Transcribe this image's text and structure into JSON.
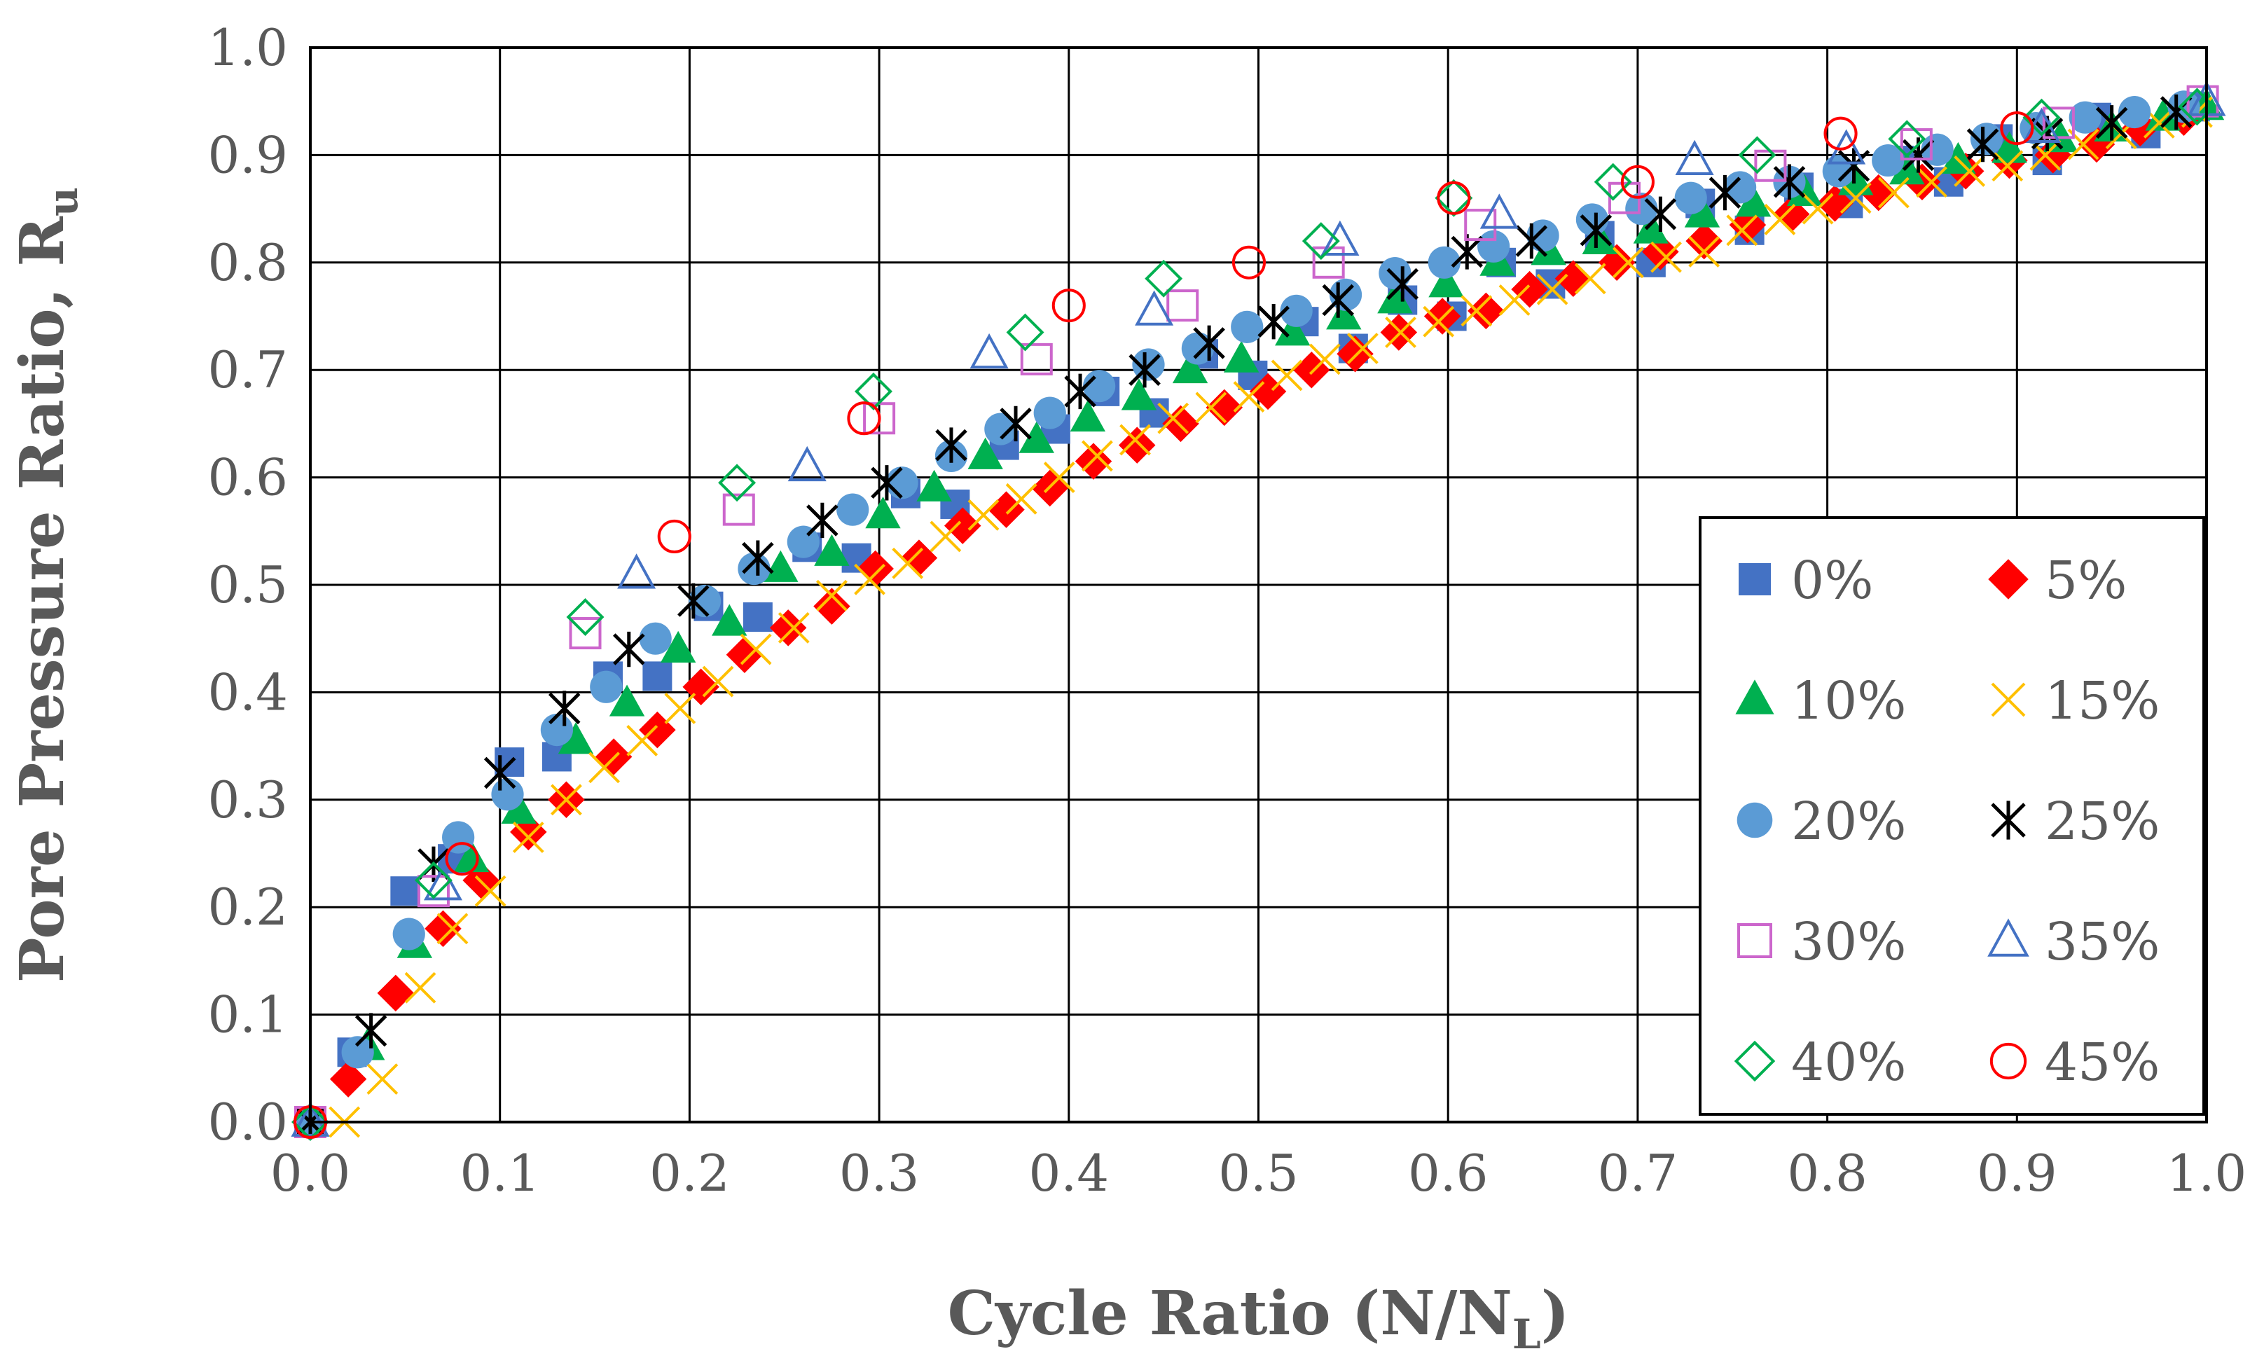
{
  "chart_data": {
    "type": "scatter",
    "title": "",
    "xlabel": {
      "main": "Cycle Ratio (N/N",
      "sub": "L",
      "suffix": ")"
    },
    "ylabel": {
      "main": "Pore Pressure Ratio, R",
      "sub": "u"
    },
    "xlim": [
      0,
      1
    ],
    "ylim": [
      0,
      1
    ],
    "x_ticks": [
      "0.0",
      "0.1",
      "0.2",
      "0.3",
      "0.4",
      "0.5",
      "0.6",
      "0.7",
      "0.8",
      "0.9",
      "1.0"
    ],
    "y_ticks": [
      "0.0",
      "0.1",
      "0.2",
      "0.3",
      "0.4",
      "0.5",
      "0.6",
      "0.7",
      "0.8",
      "0.9",
      "1.0"
    ],
    "grid": true,
    "legend_position": "lower-right",
    "series": [
      {
        "name": "0%",
        "marker": "square",
        "color": "#4472C4",
        "x": [
          0,
          0.022,
          0.05,
          0.075,
          0.105,
          0.13,
          0.157,
          0.183,
          0.21,
          0.236,
          0.262,
          0.288,
          0.314,
          0.34,
          0.366,
          0.393,
          0.419,
          0.445,
          0.471,
          0.497,
          0.524,
          0.55,
          0.576,
          0.602,
          0.628,
          0.654,
          0.68,
          0.707,
          0.733,
          0.759,
          0.785,
          0.811,
          0.838,
          0.864,
          0.89,
          0.916,
          0.942,
          0.968,
          0.994
        ],
        "y": [
          0,
          0.065,
          0.215,
          0.245,
          0.335,
          0.34,
          0.415,
          0.415,
          0.48,
          0.47,
          0.535,
          0.525,
          0.585,
          0.575,
          0.63,
          0.645,
          0.68,
          0.66,
          0.715,
          0.695,
          0.745,
          0.72,
          0.765,
          0.75,
          0.8,
          0.78,
          0.825,
          0.8,
          0.855,
          0.83,
          0.87,
          0.855,
          0.895,
          0.875,
          0.915,
          0.895,
          0.935,
          0.92,
          0.945
        ]
      },
      {
        "name": "5%",
        "marker": "diamond",
        "color": "#FF0000",
        "x": [
          0,
          0.02,
          0.045,
          0.07,
          0.09,
          0.115,
          0.135,
          0.16,
          0.183,
          0.206,
          0.229,
          0.252,
          0.275,
          0.298,
          0.321,
          0.344,
          0.367,
          0.39,
          0.413,
          0.436,
          0.459,
          0.482,
          0.505,
          0.528,
          0.551,
          0.574,
          0.597,
          0.62,
          0.643,
          0.666,
          0.689,
          0.712,
          0.735,
          0.758,
          0.781,
          0.804,
          0.827,
          0.85,
          0.873,
          0.896,
          0.919,
          0.942,
          0.965,
          0.988
        ],
        "y": [
          0,
          0.04,
          0.12,
          0.18,
          0.225,
          0.27,
          0.3,
          0.34,
          0.365,
          0.405,
          0.435,
          0.46,
          0.48,
          0.515,
          0.525,
          0.555,
          0.57,
          0.59,
          0.615,
          0.63,
          0.65,
          0.665,
          0.68,
          0.7,
          0.715,
          0.735,
          0.75,
          0.755,
          0.775,
          0.785,
          0.8,
          0.81,
          0.82,
          0.835,
          0.845,
          0.855,
          0.865,
          0.875,
          0.885,
          0.895,
          0.9,
          0.91,
          0.925,
          0.935
        ]
      },
      {
        "name": "10%",
        "marker": "triangle",
        "color": "#00B050",
        "x": [
          0,
          0.03,
          0.055,
          0.085,
          0.11,
          0.14,
          0.167,
          0.194,
          0.221,
          0.248,
          0.275,
          0.302,
          0.329,
          0.356,
          0.383,
          0.41,
          0.437,
          0.464,
          0.491,
          0.518,
          0.545,
          0.572,
          0.599,
          0.626,
          0.653,
          0.68,
          0.707,
          0.734,
          0.761,
          0.788,
          0.815,
          0.842,
          0.869,
          0.896,
          0.923,
          0.95,
          0.977,
          1.0
        ],
        "y": [
          0,
          0.07,
          0.165,
          0.245,
          0.29,
          0.355,
          0.39,
          0.44,
          0.465,
          0.515,
          0.53,
          0.565,
          0.59,
          0.62,
          0.635,
          0.655,
          0.675,
          0.7,
          0.71,
          0.735,
          0.75,
          0.765,
          0.78,
          0.8,
          0.81,
          0.82,
          0.83,
          0.845,
          0.855,
          0.865,
          0.875,
          0.885,
          0.895,
          0.905,
          0.915,
          0.925,
          0.935,
          0.945
        ]
      },
      {
        "name": "15%",
        "marker": "x",
        "color": "#FFC000",
        "x": [
          0.018,
          0.038,
          0.058,
          0.075,
          0.095,
          0.115,
          0.135,
          0.155,
          0.175,
          0.195,
          0.215,
          0.235,
          0.255,
          0.275,
          0.295,
          0.315,
          0.335,
          0.355,
          0.375,
          0.395,
          0.415,
          0.435,
          0.455,
          0.475,
          0.495,
          0.515,
          0.535,
          0.555,
          0.575,
          0.595,
          0.615,
          0.635,
          0.655,
          0.675,
          0.695,
          0.715,
          0.735,
          0.755,
          0.775,
          0.795,
          0.815,
          0.835,
          0.855,
          0.875,
          0.895,
          0.915,
          0.935,
          0.955,
          0.975,
          0.995
        ],
        "y": [
          0,
          0.04,
          0.125,
          0.18,
          0.215,
          0.265,
          0.3,
          0.33,
          0.355,
          0.385,
          0.41,
          0.44,
          0.46,
          0.49,
          0.505,
          0.52,
          0.545,
          0.565,
          0.58,
          0.6,
          0.62,
          0.635,
          0.655,
          0.665,
          0.675,
          0.695,
          0.71,
          0.72,
          0.735,
          0.745,
          0.755,
          0.765,
          0.775,
          0.785,
          0.8,
          0.805,
          0.81,
          0.83,
          0.84,
          0.85,
          0.86,
          0.865,
          0.875,
          0.885,
          0.89,
          0.9,
          0.91,
          0.92,
          0.93,
          0.94
        ]
      },
      {
        "name": "20%",
        "marker": "circle",
        "color": "#5B9BD5",
        "x": [
          0,
          0.025,
          0.052,
          0.078,
          0.104,
          0.13,
          0.156,
          0.182,
          0.208,
          0.234,
          0.26,
          0.286,
          0.312,
          0.338,
          0.364,
          0.39,
          0.416,
          0.442,
          0.468,
          0.494,
          0.52,
          0.546,
          0.572,
          0.598,
          0.624,
          0.65,
          0.676,
          0.702,
          0.728,
          0.754,
          0.78,
          0.806,
          0.832,
          0.858,
          0.884,
          0.91,
          0.936,
          0.962,
          0.988
        ],
        "y": [
          0,
          0.065,
          0.175,
          0.265,
          0.305,
          0.365,
          0.405,
          0.45,
          0.485,
          0.515,
          0.54,
          0.57,
          0.595,
          0.62,
          0.645,
          0.66,
          0.685,
          0.705,
          0.72,
          0.74,
          0.755,
          0.77,
          0.79,
          0.8,
          0.815,
          0.825,
          0.84,
          0.85,
          0.86,
          0.87,
          0.875,
          0.885,
          0.895,
          0.905,
          0.915,
          0.925,
          0.935,
          0.94,
          0.945
        ]
      },
      {
        "name": "25%",
        "marker": "star",
        "color": "#000000",
        "x": [
          0,
          0.032,
          0.065,
          0.1,
          0.134,
          0.168,
          0.202,
          0.236,
          0.27,
          0.304,
          0.338,
          0.372,
          0.406,
          0.44,
          0.474,
          0.508,
          0.542,
          0.576,
          0.61,
          0.644,
          0.678,
          0.712,
          0.746,
          0.78,
          0.814,
          0.848,
          0.882,
          0.916,
          0.95,
          0.984
        ],
        "y": [
          0,
          0.085,
          0.24,
          0.325,
          0.385,
          0.44,
          0.485,
          0.525,
          0.56,
          0.595,
          0.63,
          0.65,
          0.68,
          0.7,
          0.725,
          0.745,
          0.765,
          0.78,
          0.81,
          0.82,
          0.83,
          0.845,
          0.865,
          0.875,
          0.89,
          0.9,
          0.91,
          0.92,
          0.93,
          0.94
        ]
      },
      {
        "name": "30%",
        "marker": "open-square",
        "color": "#CC66CC",
        "x": [
          0,
          0.065,
          0.145,
          0.226,
          0.3,
          0.383,
          0.46,
          0.537,
          0.617,
          0.693,
          0.77,
          0.847,
          0.922,
          0.998
        ],
        "y": [
          0,
          0.215,
          0.455,
          0.57,
          0.655,
          0.71,
          0.76,
          0.8,
          0.835,
          0.86,
          0.89,
          0.91,
          0.93,
          0.95
        ]
      },
      {
        "name": "35%",
        "marker": "open-triangle",
        "color": "#4472C4",
        "x": [
          0,
          0.07,
          0.172,
          0.262,
          0.358,
          0.445,
          0.543,
          0.627,
          0.73,
          0.81,
          0.913,
          1.0
        ],
        "y": [
          0,
          0.22,
          0.51,
          0.61,
          0.715,
          0.755,
          0.82,
          0.845,
          0.895,
          0.905,
          0.925,
          0.95
        ]
      },
      {
        "name": "40%",
        "marker": "open-diamond",
        "color": "#00B050",
        "x": [
          0,
          0.065,
          0.145,
          0.225,
          0.297,
          0.377,
          0.45,
          0.533,
          0.603,
          0.687,
          0.763,
          0.842,
          0.913,
          0.995
        ],
        "y": [
          0,
          0.225,
          0.47,
          0.595,
          0.68,
          0.735,
          0.785,
          0.82,
          0.86,
          0.875,
          0.9,
          0.915,
          0.935,
          0.945
        ]
      },
      {
        "name": "45%",
        "marker": "open-circle",
        "color": "#FF0000",
        "x": [
          0,
          0.08,
          0.192,
          0.292,
          0.4,
          0.495,
          0.603,
          0.7,
          0.807,
          0.9
        ],
        "y": [
          0,
          0.245,
          0.545,
          0.655,
          0.76,
          0.8,
          0.86,
          0.875,
          0.92,
          0.925
        ]
      }
    ],
    "legend_layout": [
      [
        "0%",
        "5%"
      ],
      [
        "10%",
        "15%"
      ],
      [
        "20%",
        "25%"
      ],
      [
        "30%",
        "35%"
      ],
      [
        "40%",
        "45%"
      ]
    ]
  }
}
